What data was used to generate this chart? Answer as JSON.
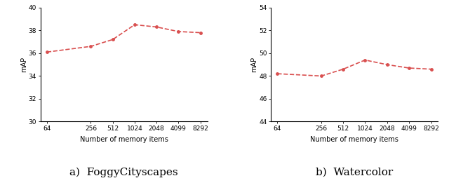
{
  "x_labels": [
    "64",
    "256",
    "512",
    "1024",
    "2048",
    "4099",
    "8292"
  ],
  "x_values": [
    64,
    256,
    512,
    1024,
    2048,
    4099,
    8292
  ],
  "foggy_y": [
    36.1,
    36.6,
    37.2,
    38.5,
    38.3,
    37.9,
    37.8
  ],
  "watercolor_y": [
    48.2,
    48.0,
    48.6,
    49.4,
    49.0,
    48.7,
    48.6
  ],
  "foggy_ylim": [
    30,
    40
  ],
  "foggy_yticks": [
    30,
    32,
    34,
    36,
    38,
    40
  ],
  "watercolor_ylim": [
    44,
    54
  ],
  "watercolor_yticks": [
    44,
    46,
    48,
    50,
    52,
    54
  ],
  "xlabel": "Number of memory items",
  "ylabel": "mAP",
  "line_color": "#d94f4f",
  "line_style": "--",
  "line_width": 1.2,
  "marker": "o",
  "marker_size": 2.5,
  "caption_a": "a)  FoggyCityscapes",
  "caption_b": "b)  Watercolor",
  "caption_fontsize": 11,
  "tick_fontsize": 6.5,
  "label_fontsize": 7,
  "ylabel_fontsize": 7
}
